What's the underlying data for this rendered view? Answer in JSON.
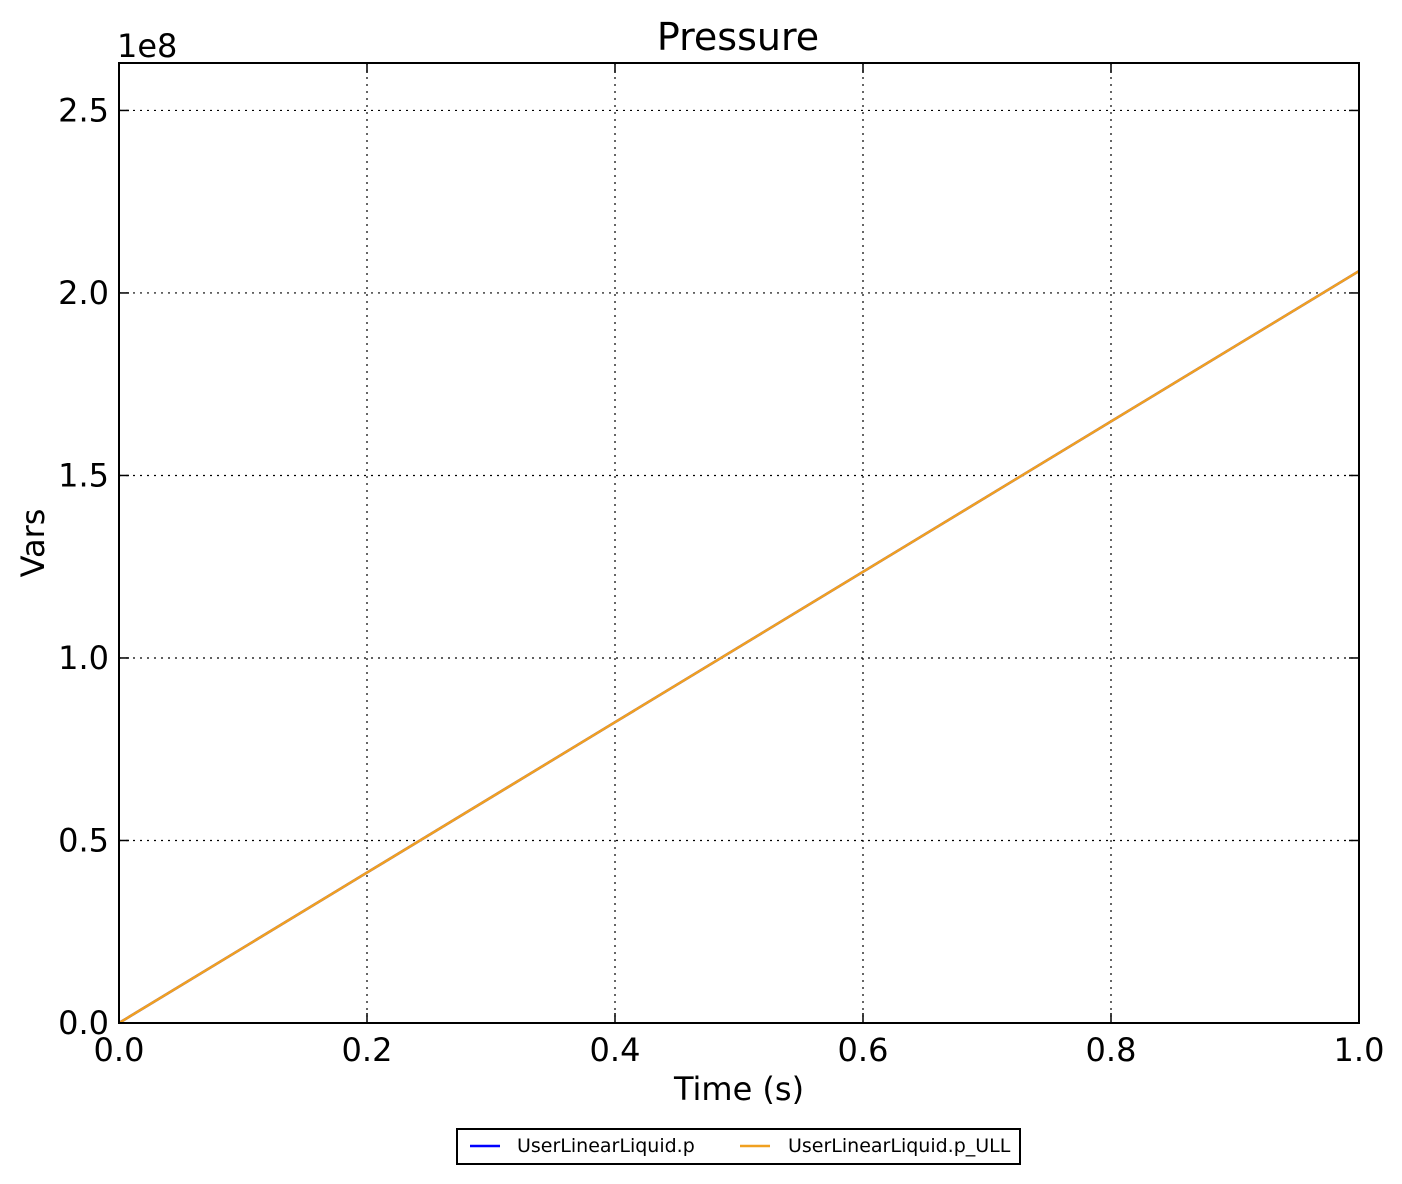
{
  "chart_data": {
    "type": "line",
    "title": "Pressure",
    "xlabel": "Time (s)",
    "ylabel": "Vars",
    "y_offset_label": "1e8",
    "xlim": [
      0.0,
      1.0
    ],
    "ylim": [
      0.0,
      2.63
    ],
    "x_ticks": [
      0.0,
      0.2,
      0.4,
      0.6,
      0.8,
      1.0
    ],
    "x_tick_labels": [
      "0.0",
      "0.2",
      "0.4",
      "0.6",
      "0.8",
      "1.0"
    ],
    "y_ticks": [
      0.0,
      0.5,
      1.0,
      1.5,
      2.0,
      2.5
    ],
    "y_tick_labels": [
      "0.0",
      "0.5",
      "1.0",
      "1.5",
      "2.0",
      "2.5"
    ],
    "grid": true,
    "legend_position": "bottom-center",
    "series": [
      {
        "name": "UserLinearLiquid.p",
        "color": "#0000ff",
        "x": [
          0.0,
          0.2,
          0.4,
          0.6,
          0.8,
          1.0
        ],
        "y": [
          0.0,
          0.412,
          0.824,
          1.236,
          1.648,
          2.06
        ]
      },
      {
        "name": "UserLinearLiquid.p_ULL",
        "color": "#f0a020",
        "x": [
          0.0,
          0.2,
          0.4,
          0.6,
          0.8,
          1.0
        ],
        "y": [
          0.0,
          0.412,
          0.824,
          1.236,
          1.648,
          2.06
        ]
      }
    ]
  }
}
